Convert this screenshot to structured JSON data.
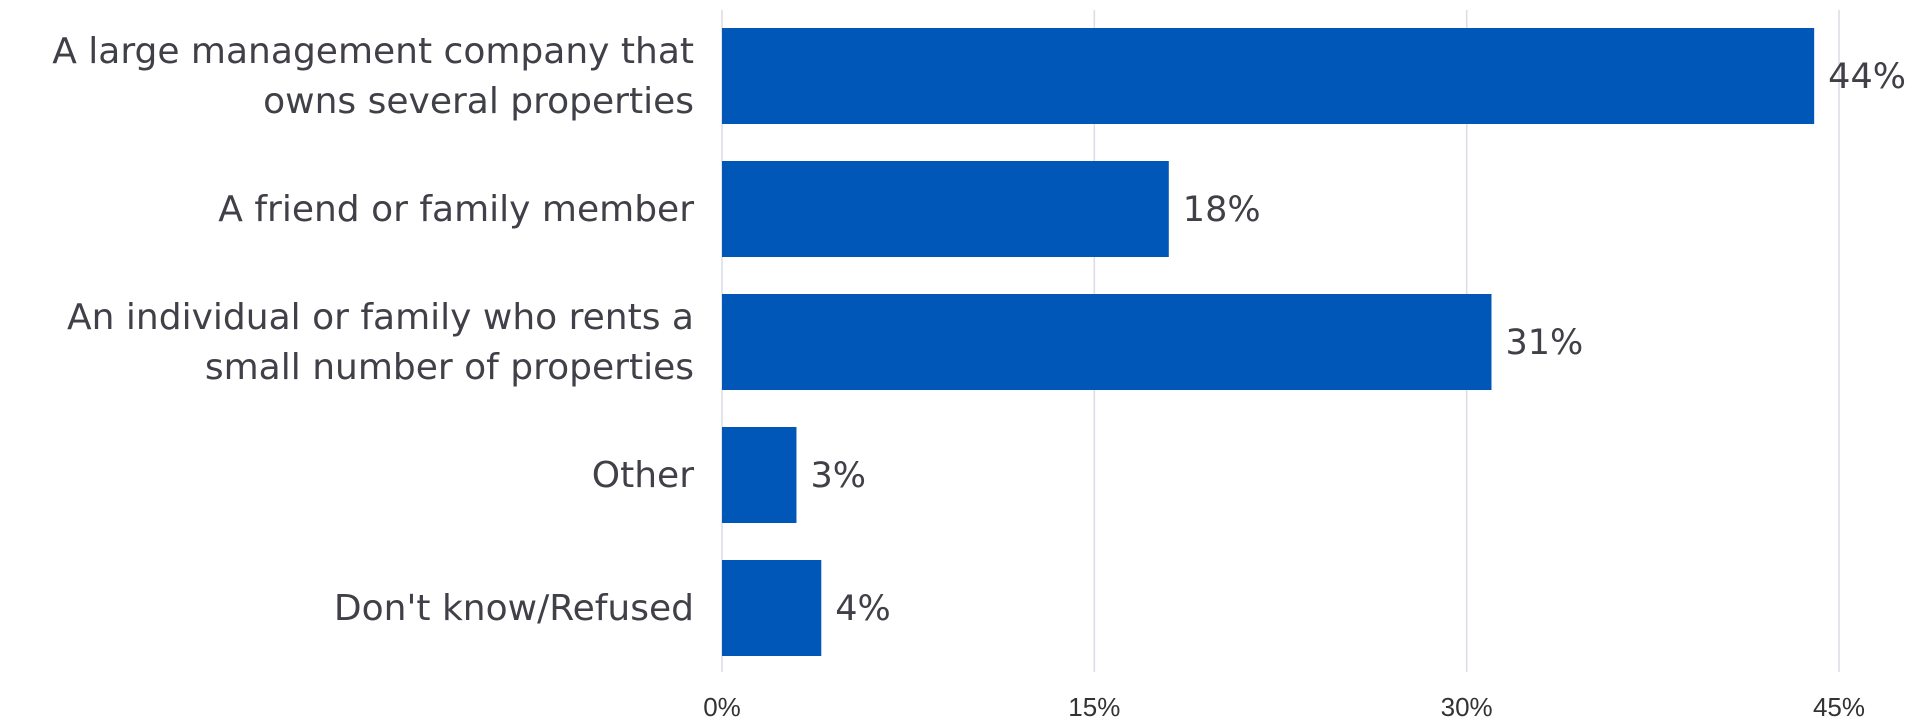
{
  "chart_data": {
    "type": "bar",
    "orientation": "horizontal",
    "categories": [
      [
        "A large management company that",
        "owns several properties"
      ],
      [
        "A friend or family member"
      ],
      [
        "An individual or family who rents a",
        "small number of properties"
      ],
      [
        "Other"
      ],
      [
        "Don't know/Refused"
      ]
    ],
    "values": [
      44,
      18,
      31,
      3,
      4
    ],
    "value_labels": [
      "44%",
      "18%",
      "31%",
      "3%",
      "4%"
    ],
    "xlim": [
      0,
      45
    ],
    "ticks": [
      0,
      15,
      30,
      45
    ],
    "tick_labels": [
      "0%",
      "15%",
      "30%",
      "45%"
    ],
    "grid": true,
    "legend": "none",
    "title": "",
    "xlabel": "",
    "ylabel": "",
    "colors": {
      "bar": "#0057b8",
      "grid": "#dcdce6",
      "text": "#404048"
    }
  }
}
